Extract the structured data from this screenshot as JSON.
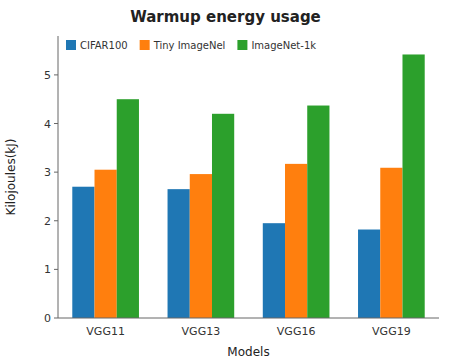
{
  "chart_data": {
    "type": "bar",
    "title": "Warmup energy usage",
    "xlabel": "Models",
    "ylabel": "Kilojoules(kJ)",
    "categories": [
      "VGG11",
      "VGG13",
      "VGG16",
      "VGG19"
    ],
    "series": [
      {
        "name": "CIFAR100",
        "color": "#1f77b4",
        "values": [
          2.7,
          2.65,
          1.95,
          1.82
        ]
      },
      {
        "name": "Tiny ImageNel",
        "color": "#ff7f0e",
        "values": [
          3.05,
          2.96,
          3.17,
          3.09
        ]
      },
      {
        "name": "ImageNet-1k",
        "color": "#2ca02c",
        "values": [
          4.5,
          4.2,
          4.37,
          5.42
        ]
      }
    ],
    "ylim": [
      0,
      5.8
    ],
    "yticks": [
      0,
      1,
      2,
      3,
      4,
      5
    ],
    "legend": "upper left",
    "grid": false
  }
}
